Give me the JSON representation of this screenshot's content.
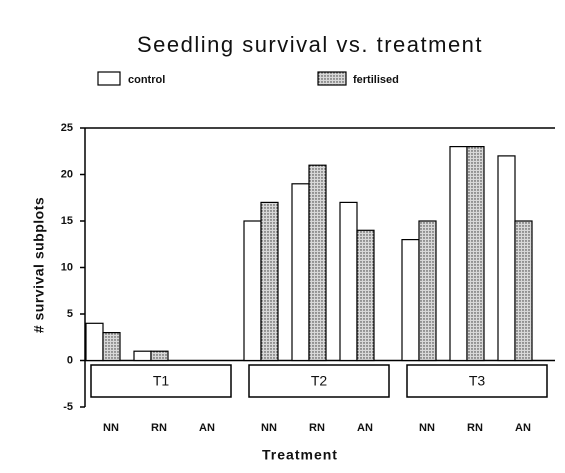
{
  "chart_data": {
    "type": "bar",
    "title": "Seedling survival vs. treatment",
    "x_label": "Treatment",
    "y_label": "# survival subplots",
    "categories": [
      "NN",
      "RN",
      "AN",
      "NN",
      "RN",
      "AN",
      "NN",
      "RN",
      "AN"
    ],
    "groups": [
      "T1",
      "T2",
      "T3"
    ],
    "series": [
      {
        "name": "control",
        "color": "#ffffff",
        "values": [
          4,
          1,
          0,
          15,
          19,
          17,
          13,
          23,
          22
        ]
      },
      {
        "name": "fertilised",
        "color": "#d8d8d8",
        "values": [
          3,
          1,
          0,
          17,
          21,
          14,
          15,
          23,
          15
        ]
      }
    ],
    "ylim": [
      -5,
      25
    ],
    "yticks": [
      -5,
      0,
      5,
      10,
      15,
      20,
      25
    ]
  }
}
